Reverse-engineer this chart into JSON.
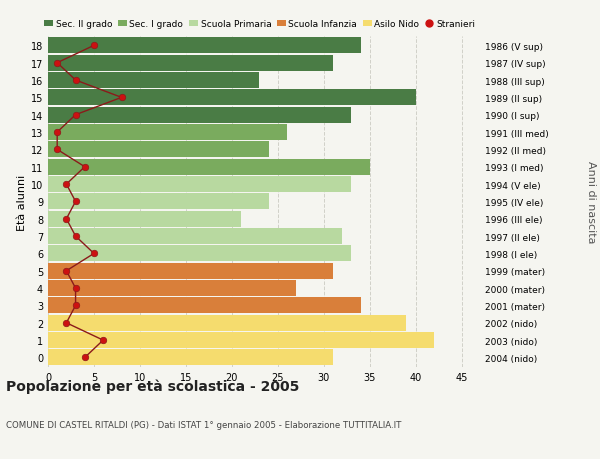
{
  "ages": [
    18,
    17,
    16,
    15,
    14,
    13,
    12,
    11,
    10,
    9,
    8,
    7,
    6,
    5,
    4,
    3,
    2,
    1,
    0
  ],
  "anni_nascita": [
    "1986 (V sup)",
    "1987 (IV sup)",
    "1988 (III sup)",
    "1989 (II sup)",
    "1990 (I sup)",
    "1991 (III med)",
    "1992 (II med)",
    "1993 (I med)",
    "1994 (V ele)",
    "1995 (IV ele)",
    "1996 (III ele)",
    "1997 (II ele)",
    "1998 (I ele)",
    "1999 (mater)",
    "2000 (mater)",
    "2001 (mater)",
    "2002 (nido)",
    "2003 (nido)",
    "2004 (nido)"
  ],
  "bar_values": [
    34,
    31,
    23,
    40,
    33,
    26,
    24,
    35,
    33,
    24,
    21,
    32,
    33,
    31,
    27,
    34,
    39,
    42,
    31
  ],
  "bar_colors": [
    "#4a7c45",
    "#4a7c45",
    "#4a7c45",
    "#4a7c45",
    "#4a7c45",
    "#7aab5e",
    "#7aab5e",
    "#7aab5e",
    "#b8d9a0",
    "#b8d9a0",
    "#b8d9a0",
    "#b8d9a0",
    "#b8d9a0",
    "#d97f3a",
    "#d97f3a",
    "#d97f3a",
    "#f5dc6e",
    "#f5dc6e",
    "#f5dc6e"
  ],
  "stranieri_values": [
    5,
    1,
    3,
    8,
    3,
    1,
    1,
    4,
    2,
    3,
    2,
    3,
    5,
    2,
    3,
    3,
    2,
    6,
    4
  ],
  "legend_labels": [
    "Sec. II grado",
    "Sec. I grado",
    "Scuola Primaria",
    "Scuola Infanzia",
    "Asilo Nido",
    "Stranieri"
  ],
  "legend_colors": [
    "#4a7c45",
    "#7aab5e",
    "#b8d9a0",
    "#d97f3a",
    "#f5dc6e",
    "#cc1111"
  ],
  "title": "Popolazione per età scolastica - 2005",
  "subtitle": "COMUNE DI CASTEL RITALDI (PG) - Dati ISTAT 1° gennaio 2005 - Elaborazione TUTTITALIA.IT",
  "ylabel_left": "Età alunni",
  "ylabel_right": "Anni di nascita",
  "xlim": [
    0,
    47
  ],
  "background_color": "#f5f5f0",
  "grid_color": "#d0d0c8",
  "bar_height": 0.92
}
